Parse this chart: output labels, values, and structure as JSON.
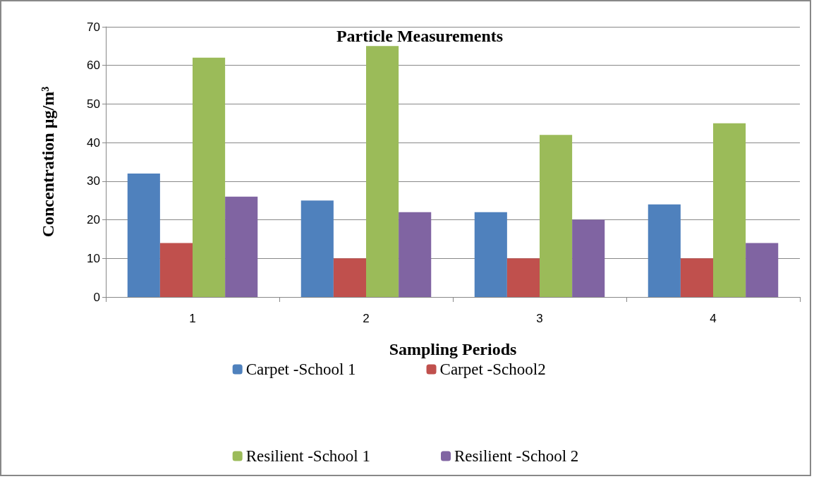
{
  "chart_data": {
    "type": "bar",
    "title": "Particle Measurements",
    "xlabel": "Sampling Periods",
    "ylabel": "Concentration µg/m³",
    "categories": [
      "1",
      "2",
      "3",
      "4"
    ],
    "series": [
      {
        "name": "Carpet -School 1",
        "color": "#4f81bd",
        "values": [
          32,
          25,
          22,
          24
        ]
      },
      {
        "name": "Carpet -School2",
        "color": "#c0504d",
        "values": [
          14,
          10,
          10,
          10
        ]
      },
      {
        "name": "Resilient -School 1",
        "color": "#9bbb59",
        "values": [
          62,
          65,
          42,
          45
        ]
      },
      {
        "name": "Resilient -School 2",
        "color": "#8064a2",
        "values": [
          26,
          22,
          20,
          14
        ]
      }
    ],
    "ylim": [
      0,
      70
    ],
    "yticks": [
      0,
      10,
      20,
      30,
      40,
      50,
      60,
      70
    ],
    "grid": "y",
    "legend": "bottom"
  }
}
